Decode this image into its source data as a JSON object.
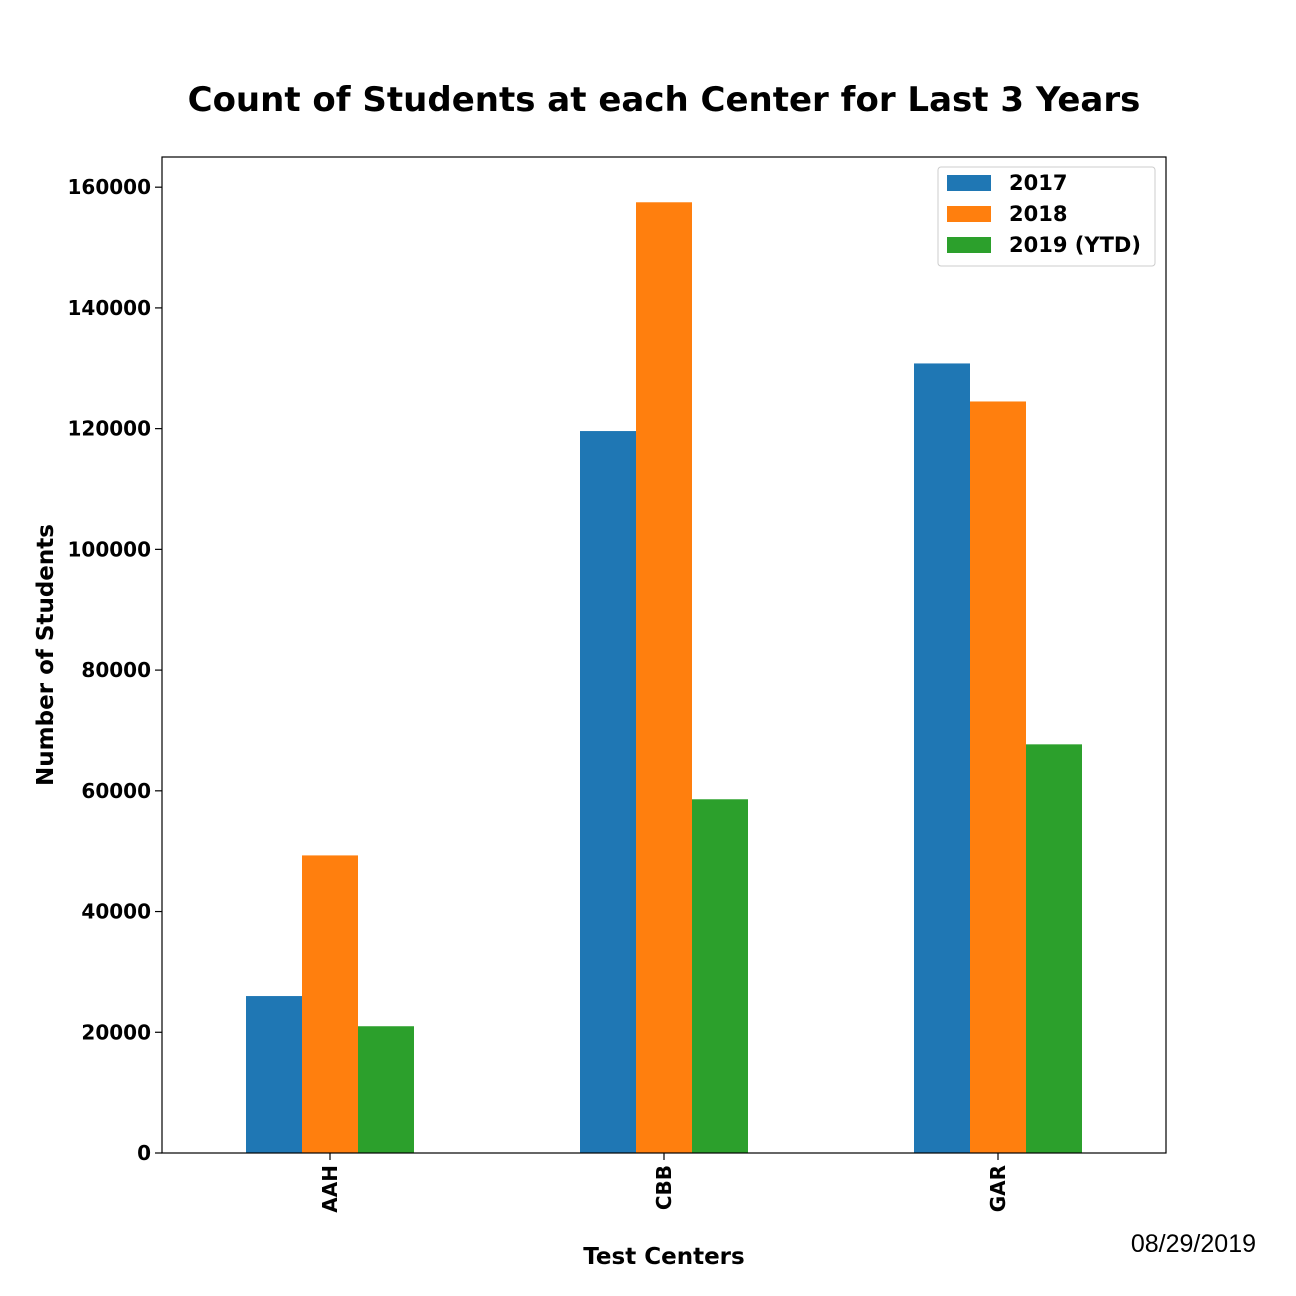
{
  "chart_data": {
    "type": "bar",
    "title": "Count of Students at each Center for Last 3 Years",
    "xlabel": "Test Centers",
    "ylabel": "Number of Students",
    "categories": [
      "AAH",
      "CBB",
      "GAR"
    ],
    "series": [
      {
        "name": "2017",
        "color": "#1f77b4",
        "values": [
          26000,
          119600,
          130800
        ]
      },
      {
        "name": "2018",
        "color": "#ff7f0e",
        "values": [
          49300,
          157500,
          124500
        ]
      },
      {
        "name": "2019 (YTD)",
        "color": "#2ca02c",
        "values": [
          21000,
          58600,
          67700
        ]
      }
    ],
    "ylim": [
      0,
      165000
    ],
    "yticks": [
      0,
      20000,
      40000,
      60000,
      80000,
      100000,
      120000,
      140000,
      160000
    ],
    "ytick_labels": [
      "0",
      "20000",
      "40000",
      "60000",
      "80000",
      "100000",
      "120000",
      "140000",
      "160000"
    ],
    "legend_position": "top-right",
    "grid": false
  },
  "date_stamp": "08/29/2019"
}
